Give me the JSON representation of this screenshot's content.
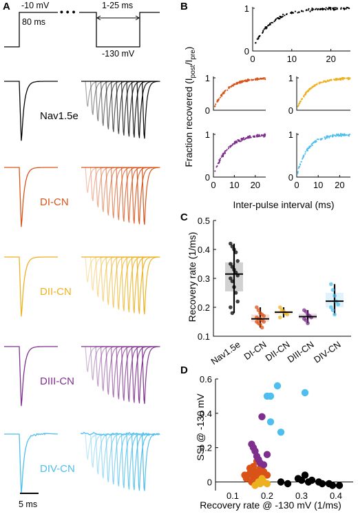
{
  "colors": {
    "nav15e": "#000000",
    "di": "#d95319",
    "dii": "#edb120",
    "diii": "#7e2f8e",
    "div": "#4dbeee"
  },
  "panels": {
    "A": {
      "letter": "A",
      "protocol": {
        "v_hold_label": "-10 mV",
        "dur_label": "80 ms",
        "ipi_label": "1-25 ms",
        "v_rec_label": "-130 mV"
      },
      "traces": [
        {
          "label": "Nav1.5e",
          "color_key": "nav15e",
          "noisy": false
        },
        {
          "label": "DI-CN",
          "color_key": "di",
          "noisy": false
        },
        {
          "label": "DII-CN",
          "color_key": "dii",
          "noisy": false
        },
        {
          "label": "DIII-CN",
          "color_key": "diii",
          "noisy": false
        },
        {
          "label": "DIV-CN",
          "color_key": "div",
          "noisy": true
        }
      ],
      "scale_bar": "5 ms"
    },
    "B": {
      "letter": "B"
    },
    "C": {
      "letter": "C"
    },
    "D": {
      "letter": "D"
    }
  },
  "chart_data": [
    {
      "panel": "B",
      "type": "scatter",
      "ylabel": "Fraction recovered (I",
      "ylabel_sub1": "post",
      "ylabel_mid": "/I",
      "ylabel_sub2": "pre",
      "ylabel_end": ")",
      "xlabel": "Inter-pulse interval (ms)",
      "xlim": [
        0,
        25
      ],
      "ylim": [
        0,
        1
      ],
      "xticks": [
        0,
        10,
        20
      ],
      "yticks": [
        0,
        1
      ],
      "subplots": [
        {
          "name": "Nav1.5e",
          "color_key": "nav15e",
          "tau_ms": 4.5,
          "n": 130
        },
        {
          "name": "DI-CN",
          "color_key": "di",
          "tau_ms": 6.5,
          "n": 130
        },
        {
          "name": "DII-CN",
          "color_key": "dii",
          "tau_ms": 6.0,
          "n": 130
        },
        {
          "name": "DIII-CN",
          "color_key": "diii",
          "tau_ms": 6.5,
          "n": 130
        },
        {
          "name": "DIV-CN",
          "color_key": "div",
          "tau_ms": 5.0,
          "n": 130
        }
      ]
    },
    {
      "panel": "C",
      "type": "box",
      "ylabel": "Recovery rate (1/ms)",
      "ylim": [
        0.1,
        0.5
      ],
      "yticks": [
        0.1,
        0.2,
        0.3,
        0.4,
        0.5
      ],
      "categories": [
        "Nav1.5e",
        "DI-CN",
        "DII-CN",
        "DIII-CN",
        "DIV-CN"
      ],
      "groups": [
        {
          "name": "Nav1.5e",
          "color_key": "nav15e",
          "median": 0.315,
          "q1": 0.255,
          "q3": 0.355,
          "whisker_low": 0.18,
          "whisker_high": 0.42,
          "points": [
            0.42,
            0.41,
            0.4,
            0.39,
            0.36,
            0.35,
            0.34,
            0.33,
            0.32,
            0.31,
            0.3,
            0.29,
            0.27,
            0.25,
            0.22,
            0.2,
            0.18
          ]
        },
        {
          "name": "DI-CN",
          "color_key": "di",
          "median": 0.16,
          "q1": 0.15,
          "q3": 0.175,
          "whisker_low": 0.13,
          "whisker_high": 0.2,
          "points": [
            0.2,
            0.19,
            0.18,
            0.175,
            0.17,
            0.165,
            0.16,
            0.16,
            0.155,
            0.15,
            0.15,
            0.145,
            0.14,
            0.13
          ]
        },
        {
          "name": "DII-CN",
          "color_key": "dii",
          "median": 0.183,
          "q1": 0.175,
          "q3": 0.19,
          "whisker_low": 0.165,
          "whisker_high": 0.2,
          "points": [
            0.2,
            0.19,
            0.185,
            0.18,
            0.175,
            0.165
          ]
        },
        {
          "name": "DIII-CN",
          "color_key": "diii",
          "median": 0.168,
          "q1": 0.16,
          "q3": 0.178,
          "whisker_low": 0.145,
          "whisker_high": 0.19,
          "points": [
            0.19,
            0.185,
            0.175,
            0.17,
            0.165,
            0.16,
            0.155,
            0.145
          ]
        },
        {
          "name": "DIV-CN",
          "color_key": "div",
          "median": 0.221,
          "q1": 0.2,
          "q3": 0.25,
          "whisker_low": 0.175,
          "whisker_high": 0.28,
          "points": [
            0.28,
            0.26,
            0.24,
            0.22,
            0.21,
            0.2,
            0.19,
            0.175
          ]
        }
      ]
    },
    {
      "panel": "D",
      "type": "scatter",
      "xlabel": "Recovery rate @ -130 mV (1/ms)",
      "ylabel": "SSI @ -130 mV",
      "xlim": [
        0.05,
        0.45
      ],
      "ylim": [
        -0.05,
        0.6
      ],
      "xticks": [
        0.1,
        0.2,
        0.3,
        0.4
      ],
      "yticks": [
        0,
        0.2,
        0.4,
        0.6
      ],
      "series": [
        {
          "name": "Nav1.5e",
          "color_key": "nav15e",
          "points": [
            [
              0.24,
              0.0
            ],
            [
              0.26,
              -0.01
            ],
            [
              0.29,
              0.02
            ],
            [
              0.3,
              0.01
            ],
            [
              0.31,
              0.04
            ],
            [
              0.32,
              0.0
            ],
            [
              0.33,
              0.01
            ],
            [
              0.35,
              0.0
            ],
            [
              0.36,
              -0.01
            ],
            [
              0.38,
              -0.01
            ],
            [
              0.39,
              -0.02
            ],
            [
              0.41,
              -0.02
            ]
          ]
        },
        {
          "name": "DI-CN",
          "color_key": "di",
          "points": [
            [
              0.135,
              0.04
            ],
            [
              0.14,
              0.02
            ],
            [
              0.15,
              0.05
            ],
            [
              0.15,
              0.08
            ],
            [
              0.155,
              0.0
            ],
            [
              0.16,
              0.03
            ],
            [
              0.16,
              0.09
            ],
            [
              0.165,
              0.06
            ],
            [
              0.17,
              0.02
            ],
            [
              0.17,
              0.12
            ],
            [
              0.175,
              0.05
            ],
            [
              0.18,
              0.08
            ],
            [
              0.185,
              0.03
            ],
            [
              0.19,
              0.06
            ],
            [
              0.2,
              0.04
            ]
          ]
        },
        {
          "name": "DII-CN",
          "color_key": "dii",
          "points": [
            [
              0.165,
              -0.02
            ],
            [
              0.175,
              0.0
            ],
            [
              0.18,
              -0.01
            ],
            [
              0.185,
              0.02
            ],
            [
              0.19,
              0.0
            ],
            [
              0.2,
              -0.01
            ]
          ]
        },
        {
          "name": "DIII-CN",
          "color_key": "diii",
          "points": [
            [
              0.155,
              0.22
            ],
            [
              0.16,
              0.2
            ],
            [
              0.165,
              0.18
            ],
            [
              0.17,
              0.15
            ],
            [
              0.175,
              0.13
            ],
            [
              0.18,
              0.11
            ],
            [
              0.185,
              0.38
            ],
            [
              0.19,
              0.1
            ],
            [
              0.2,
              0.16
            ]
          ]
        },
        {
          "name": "DIV-CN",
          "color_key": "div",
          "points": [
            [
              0.2,
              0.5
            ],
            [
              0.21,
              0.5
            ],
            [
              0.21,
              0.35
            ],
            [
              0.23,
              0.56
            ],
            [
              0.24,
              0.29
            ],
            [
              0.31,
              0.52
            ]
          ]
        }
      ]
    }
  ]
}
